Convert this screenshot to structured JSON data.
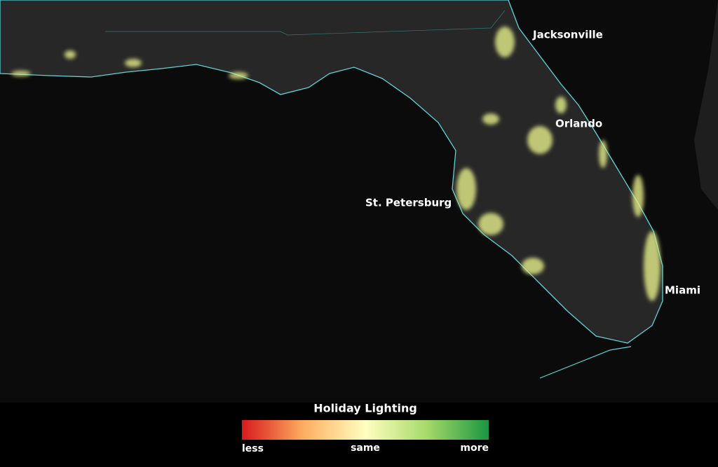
{
  "map": {
    "labels": [
      "Jacksonville",
      "Orlando",
      "St. Petersburg",
      "Miami"
    ],
    "legend": {
      "title": "Holiday Lighting",
      "low": "less",
      "mid": "same",
      "high": "more"
    }
  }
}
